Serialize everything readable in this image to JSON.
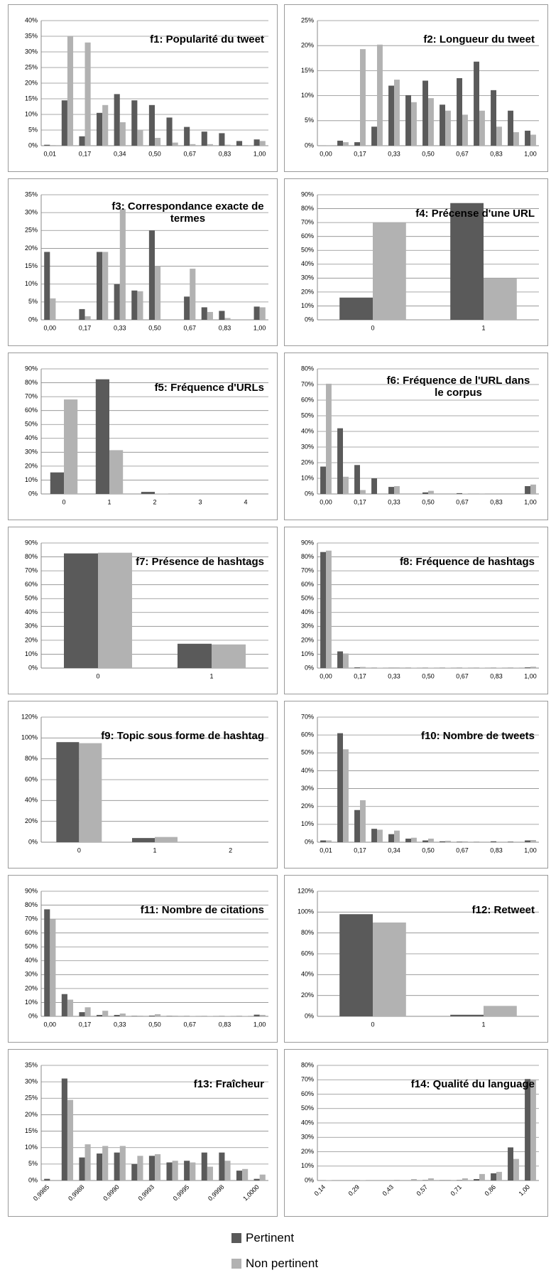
{
  "chart_data": [
    {
      "type": "bar",
      "title": "f1: Popularité du tweet",
      "categories": [
        "0,01",
        null,
        "0,17",
        null,
        "0,34",
        null,
        "0,50",
        null,
        "0,67",
        null,
        "0,83",
        null,
        "1,00"
      ],
      "series": [
        {
          "values": [
            0.3,
            14.5,
            3,
            10.5,
            16.5,
            14.5,
            13,
            9,
            6,
            4.5,
            4,
            1.5,
            2
          ]
        },
        {
          "values": [
            0.2,
            35,
            33,
            13,
            7.5,
            5,
            2.5,
            1,
            0.5,
            0.5,
            0.3,
            0.2,
            1.5
          ]
        }
      ],
      "ylim": [
        0,
        40
      ],
      "yticks": [
        {
          "value": 0,
          "label": "0%"
        },
        {
          "value": 5,
          "label": "5%"
        },
        {
          "value": 10,
          "label": "10%"
        },
        {
          "value": 15,
          "label": "15%"
        },
        {
          "value": 20,
          "label": "20%"
        },
        {
          "value": 25,
          "label": "25%"
        },
        {
          "value": 30,
          "label": "30%"
        },
        {
          "value": 35,
          "label": "35%"
        },
        {
          "value": 40,
          "label": "40%"
        }
      ],
      "grid": true
    },
    {
      "type": "bar",
      "title": "f2: Longueur du tweet",
      "categories": [
        "0,00",
        null,
        "0,17",
        null,
        "0,33",
        null,
        "0,50",
        null,
        "0,67",
        null,
        "0,83",
        null,
        "1,00"
      ],
      "series": [
        {
          "values": [
            0,
            1,
            0.7,
            3.8,
            12,
            10.1,
            13,
            8.2,
            13.5,
            16.8,
            11.1,
            7,
            3
          ]
        },
        {
          "values": [
            0.1,
            0.7,
            19.3,
            20.2,
            13.2,
            8.7,
            9.5,
            7,
            6.2,
            7,
            3.8,
            2.7,
            2.2
          ]
        }
      ],
      "ylim": [
        0,
        25
      ],
      "yticks": [
        {
          "value": 0,
          "label": "0%"
        },
        {
          "value": 5,
          "label": "5%"
        },
        {
          "value": 10,
          "label": "10%"
        },
        {
          "value": 15,
          "label": "15%"
        },
        {
          "value": 20,
          "label": "20%"
        },
        {
          "value": 25,
          "label": "25%"
        }
      ],
      "grid": true
    },
    {
      "type": "bar",
      "title": "f3: Correspondance exacte de termes",
      "categories": [
        "0,00",
        null,
        "0,17",
        null,
        "0,33",
        null,
        "0,50",
        null,
        "0,67",
        null,
        "0,83",
        null,
        "1,00"
      ],
      "series": [
        {
          "values": [
            19,
            0,
            3,
            19,
            10,
            8.2,
            25,
            0,
            6.5,
            3.5,
            2.5,
            0,
            3.7
          ]
        },
        {
          "values": [
            6,
            0,
            1,
            19,
            31,
            8,
            15,
            0,
            14.3,
            2.2,
            0.5,
            0,
            3.5
          ]
        }
      ],
      "ylim": [
        0,
        35
      ],
      "yticks": [
        {
          "value": 0,
          "label": "0%"
        },
        {
          "value": 5,
          "label": "5%"
        },
        {
          "value": 10,
          "label": "10%"
        },
        {
          "value": 15,
          "label": "15%"
        },
        {
          "value": 20,
          "label": "20%"
        },
        {
          "value": 25,
          "label": "25%"
        },
        {
          "value": 30,
          "label": "30%"
        },
        {
          "value": 35,
          "label": "35%"
        }
      ],
      "grid": true
    },
    {
      "type": "bar",
      "title": "f4: Précense d'une URL",
      "categories": [
        "0",
        "1"
      ],
      "series": [
        {
          "values": [
            16,
            84
          ]
        },
        {
          "values": [
            70,
            30
          ]
        }
      ],
      "ylim": [
        0,
        90
      ],
      "yticks": [
        {
          "value": 0,
          "label": "0%"
        },
        {
          "value": 10,
          "label": "10%"
        },
        {
          "value": 20,
          "label": "20%"
        },
        {
          "value": 30,
          "label": "30%"
        },
        {
          "value": 40,
          "label": "40%"
        },
        {
          "value": 50,
          "label": "50%"
        },
        {
          "value": 60,
          "label": "60%"
        },
        {
          "value": 70,
          "label": "70%"
        },
        {
          "value": 80,
          "label": "80%"
        },
        {
          "value": 90,
          "label": "90%"
        }
      ],
      "grid": true
    },
    {
      "type": "bar",
      "title": "f5: Fréquence d'URLs",
      "categories": [
        "0",
        "1",
        "2",
        "3",
        "4"
      ],
      "series": [
        {
          "values": [
            15.5,
            82.5,
            1.5,
            0,
            0
          ]
        },
        {
          "values": [
            68,
            31.5,
            0.3,
            0,
            0
          ]
        }
      ],
      "ylim": [
        0,
        90
      ],
      "yticks": [
        {
          "value": 0,
          "label": "0%"
        },
        {
          "value": 10,
          "label": "10%"
        },
        {
          "value": 20,
          "label": "20%"
        },
        {
          "value": 30,
          "label": "30%"
        },
        {
          "value": 40,
          "label": "40%"
        },
        {
          "value": 50,
          "label": "50%"
        },
        {
          "value": 60,
          "label": "60%"
        },
        {
          "value": 70,
          "label": "70%"
        },
        {
          "value": 80,
          "label": "80%"
        },
        {
          "value": 90,
          "label": "90%"
        }
      ],
      "grid": true
    },
    {
      "type": "bar",
      "title": "f6: Fréquence de l'URL dans le corpus",
      "categories": [
        "0,00",
        null,
        "0,17",
        null,
        "0,33",
        null,
        "0,50",
        null,
        "0,67",
        null,
        "0,83",
        null,
        "1,00"
      ],
      "series": [
        {
          "values": [
            17.5,
            42,
            18.5,
            10,
            4.5,
            0,
            1,
            0,
            0.5,
            0,
            0,
            0,
            5
          ]
        },
        {
          "values": [
            70.5,
            11,
            2.5,
            0,
            5,
            0,
            2,
            0,
            0.2,
            0.3,
            0,
            0,
            6
          ]
        }
      ],
      "ylim": [
        0,
        80
      ],
      "yticks": [
        {
          "value": 0,
          "label": "0%"
        },
        {
          "value": 10,
          "label": "10%"
        },
        {
          "value": 20,
          "label": "20%"
        },
        {
          "value": 30,
          "label": "30%"
        },
        {
          "value": 40,
          "label": "40%"
        },
        {
          "value": 50,
          "label": "50%"
        },
        {
          "value": 60,
          "label": "60%"
        },
        {
          "value": 70,
          "label": "70%"
        },
        {
          "value": 80,
          "label": "80%"
        }
      ],
      "grid": true
    },
    {
      "type": "bar",
      "title": "f7: Présence de hashtags",
      "categories": [
        "0",
        "1"
      ],
      "series": [
        {
          "values": [
            82.5,
            17.5
          ]
        },
        {
          "values": [
            83,
            17
          ]
        }
      ],
      "ylim": [
        0,
        90
      ],
      "yticks": [
        {
          "value": 0,
          "label": "0%"
        },
        {
          "value": 10,
          "label": "10%"
        },
        {
          "value": 20,
          "label": "20%"
        },
        {
          "value": 30,
          "label": "30%"
        },
        {
          "value": 40,
          "label": "40%"
        },
        {
          "value": 50,
          "label": "50%"
        },
        {
          "value": 60,
          "label": "60%"
        },
        {
          "value": 70,
          "label": "70%"
        },
        {
          "value": 80,
          "label": "80%"
        },
        {
          "value": 90,
          "label": "90%"
        }
      ],
      "grid": true
    },
    {
      "type": "bar",
      "title": "f8: Fréquence de hashtags",
      "categories": [
        "0,00",
        null,
        "0,17",
        null,
        "0,33",
        null,
        "0,50",
        null,
        "0,67",
        null,
        "0,83",
        null,
        "1,00"
      ],
      "series": [
        {
          "values": [
            83.5,
            12,
            0.5,
            0.2,
            0.2,
            0.2,
            0.2,
            0.2,
            0.2,
            0.1,
            0.2,
            0.2,
            0.5
          ]
        },
        {
          "values": [
            84.5,
            10.5,
            0.8,
            0.3,
            0.5,
            0.3,
            0.3,
            0.2,
            0.2,
            0.2,
            0.2,
            0.1,
            1
          ]
        }
      ],
      "ylim": [
        0,
        90
      ],
      "yticks": [
        {
          "value": 0,
          "label": "0%"
        },
        {
          "value": 10,
          "label": "10%"
        },
        {
          "value": 20,
          "label": "20%"
        },
        {
          "value": 30,
          "label": "30%"
        },
        {
          "value": 40,
          "label": "40%"
        },
        {
          "value": 50,
          "label": "50%"
        },
        {
          "value": 60,
          "label": "60%"
        },
        {
          "value": 70,
          "label": "70%"
        },
        {
          "value": 80,
          "label": "80%"
        },
        {
          "value": 90,
          "label": "90%"
        }
      ],
      "grid": true
    },
    {
      "type": "bar",
      "title": "f9: Topic sous forme de hashtag",
      "categories": [
        "0",
        "1",
        "2"
      ],
      "series": [
        {
          "values": [
            96,
            4,
            0
          ]
        },
        {
          "values": [
            95,
            5,
            0.5
          ]
        }
      ],
      "ylim": [
        0,
        120
      ],
      "yticks": [
        {
          "value": 0,
          "label": "0%"
        },
        {
          "value": 20,
          "label": "20%"
        },
        {
          "value": 40,
          "label": "40%"
        },
        {
          "value": 60,
          "label": "60%"
        },
        {
          "value": 80,
          "label": "80%"
        },
        {
          "value": 100,
          "label": "100%"
        },
        {
          "value": 120,
          "label": "120%"
        }
      ],
      "grid": true
    },
    {
      "type": "bar",
      "title": "f10: Nombre de tweets",
      "categories": [
        "0,01",
        null,
        "0,17",
        null,
        "0,34",
        null,
        "0,50",
        null,
        "0,67",
        null,
        "0,83",
        null,
        "1,00"
      ],
      "series": [
        {
          "values": [
            1,
            61,
            18,
            7.5,
            4.5,
            2,
            1,
            0.5,
            0.3,
            0.2,
            0.5,
            0.3,
            1
          ]
        },
        {
          "values": [
            1,
            52,
            23.5,
            7,
            6.5,
            2.5,
            2,
            0.8,
            0.5,
            0.3,
            0.3,
            0.3,
            1.2
          ]
        }
      ],
      "ylim": [
        0,
        70
      ],
      "yticks": [
        {
          "value": 0,
          "label": "0%"
        },
        {
          "value": 10,
          "label": "10%"
        },
        {
          "value": 20,
          "label": "20%"
        },
        {
          "value": 30,
          "label": "30%"
        },
        {
          "value": 40,
          "label": "40%"
        },
        {
          "value": 50,
          "label": "50%"
        },
        {
          "value": 60,
          "label": "60%"
        },
        {
          "value": 70,
          "label": "70%"
        }
      ],
      "grid": true
    },
    {
      "type": "bar",
      "title": "f11: Nombre de citations",
      "categories": [
        "0,00",
        null,
        "0,17",
        null,
        "0,33",
        null,
        "0,50",
        null,
        "0,67",
        null,
        "0,83",
        null,
        "1,00"
      ],
      "series": [
        {
          "values": [
            77,
            16,
            3,
            1,
            1,
            0.3,
            0.5,
            0.3,
            0.2,
            0.1,
            0.2,
            0.2,
            1.2
          ]
        },
        {
          "values": [
            70,
            12,
            6.5,
            4,
            2,
            0.5,
            1.5,
            0.5,
            0.3,
            0.2,
            0.3,
            0.2,
            1
          ]
        }
      ],
      "ylim": [
        0,
        90
      ],
      "yticks": [
        {
          "value": 0,
          "label": "0%"
        },
        {
          "value": 10,
          "label": "10%"
        },
        {
          "value": 20,
          "label": "20%"
        },
        {
          "value": 30,
          "label": "30%"
        },
        {
          "value": 40,
          "label": "40%"
        },
        {
          "value": 50,
          "label": "50%"
        },
        {
          "value": 60,
          "label": "60%"
        },
        {
          "value": 70,
          "label": "70%"
        },
        {
          "value": 80,
          "label": "80%"
        },
        {
          "value": 90,
          "label": "90%"
        }
      ],
      "grid": true
    },
    {
      "type": "bar",
      "title": "f12: Retweet",
      "categories": [
        "0",
        "1"
      ],
      "series": [
        {
          "values": [
            98,
            1.5
          ]
        },
        {
          "values": [
            90,
            10
          ]
        }
      ],
      "ylim": [
        0,
        120
      ],
      "yticks": [
        {
          "value": 0,
          "label": "0%"
        },
        {
          "value": 20,
          "label": "20%"
        },
        {
          "value": 40,
          "label": "40%"
        },
        {
          "value": 60,
          "label": "60%"
        },
        {
          "value": 80,
          "label": "80%"
        },
        {
          "value": 100,
          "label": "100%"
        },
        {
          "value": 120,
          "label": "120%"
        }
      ],
      "grid": true
    },
    {
      "type": "bar",
      "title": "f13: Fraîcheur",
      "categories": [
        "0,9985",
        null,
        "0,9988",
        null,
        "0,9990",
        null,
        "0,9993",
        null,
        "0,9995",
        null,
        "0,9998",
        null,
        "1,0000"
      ],
      "series": [
        {
          "values": [
            0.5,
            31,
            7,
            8.2,
            8.5,
            5,
            7.5,
            5.5,
            6,
            8.5,
            8.5,
            3,
            0.5
          ]
        },
        {
          "values": [
            0,
            24.5,
            11,
            10.5,
            10.5,
            7.5,
            8,
            6,
            5.5,
            4.2,
            6,
            3.5,
            1.8
          ]
        }
      ],
      "ylim": [
        0,
        35
      ],
      "yticks": [
        {
          "value": 0,
          "label": "0%"
        },
        {
          "value": 5,
          "label": "5%"
        },
        {
          "value": 10,
          "label": "10%"
        },
        {
          "value": 15,
          "label": "15%"
        },
        {
          "value": 20,
          "label": "20%"
        },
        {
          "value": 25,
          "label": "25%"
        },
        {
          "value": 30,
          "label": "30%"
        },
        {
          "value": 35,
          "label": "35%"
        }
      ],
      "grid": true
    },
    {
      "type": "bar",
      "title": "f14: Qualité du language",
      "categories": [
        "0,14",
        null,
        "0,29",
        null,
        "0,43",
        null,
        "0,57",
        null,
        "0,71",
        null,
        "0,86",
        null,
        "1,00"
      ],
      "series": [
        {
          "values": [
            0,
            0,
            0,
            0,
            0,
            0,
            0.3,
            0.2,
            0.3,
            1,
            5,
            23,
            70.5
          ]
        },
        {
          "values": [
            0.2,
            0,
            0.2,
            0,
            0.5,
            1,
            1.5,
            0.5,
            1.5,
            4.5,
            6,
            15,
            70
          ]
        }
      ],
      "ylim": [
        0,
        80
      ],
      "yticks": [
        {
          "value": 0,
          "label": "0%"
        },
        {
          "value": 10,
          "label": "10%"
        },
        {
          "value": 20,
          "label": "20%"
        },
        {
          "value": 30,
          "label": "30%"
        },
        {
          "value": 40,
          "label": "40%"
        },
        {
          "value": 50,
          "label": "50%"
        },
        {
          "value": 60,
          "label": "60%"
        },
        {
          "value": 70,
          "label": "70%"
        },
        {
          "value": 80,
          "label": "80%"
        }
      ],
      "grid": true
    }
  ],
  "legend": [
    {
      "name": "Pertinent",
      "color": "#5a5a5a"
    },
    {
      "name": "Non pertinent",
      "color": "#b2b2b2"
    }
  ]
}
